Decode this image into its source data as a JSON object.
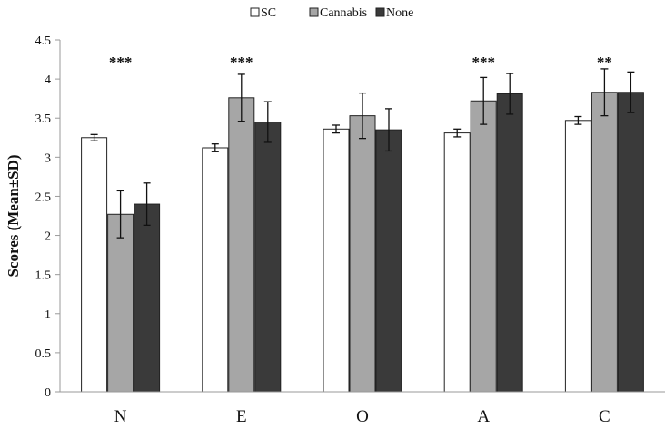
{
  "chart_data": {
    "type": "bar",
    "title": "",
    "xlabel": "",
    "ylabel": "Scores (Mean±SD)",
    "ylim": [
      0,
      4.5
    ],
    "yticks": [
      "0",
      "0.5",
      "1",
      "1.5",
      "2",
      "2.5",
      "3",
      "3.5",
      "4",
      "4.5"
    ],
    "grid": false,
    "legend_position": "top-center",
    "categories": [
      "N",
      "E",
      "O",
      "A",
      "C"
    ],
    "series": [
      {
        "name": "SC",
        "color": "#ffffff",
        "values": [
          3.25,
          3.12,
          3.36,
          3.31,
          3.47
        ],
        "errors": [
          0.04,
          0.05,
          0.05,
          0.05,
          0.05
        ]
      },
      {
        "name": "Cannabis",
        "color": "#a6a6a6",
        "values": [
          2.27,
          3.76,
          3.53,
          3.72,
          3.83
        ],
        "errors": [
          0.3,
          0.3,
          0.29,
          0.3,
          0.3
        ]
      },
      {
        "name": "None",
        "color": "#3a3a3a",
        "values": [
          2.4,
          3.45,
          3.35,
          3.81,
          3.83
        ],
        "errors": [
          0.27,
          0.26,
          0.27,
          0.26,
          0.26
        ]
      }
    ],
    "annotations": [
      "***",
      "***",
      "",
      "***",
      "**"
    ]
  }
}
